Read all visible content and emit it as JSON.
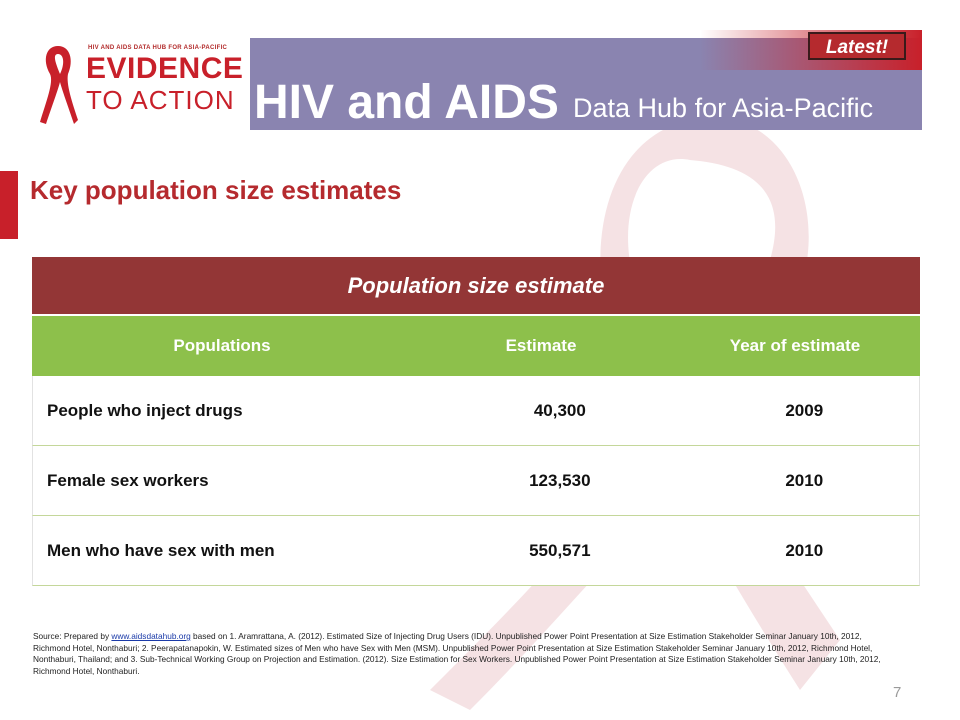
{
  "header": {
    "logo_small": "HIV AND AIDS DATA HUB FOR ASIA-PACIFIC",
    "logo_line1": "EVIDENCE",
    "logo_line2": "TO ACTION",
    "title": "HIV and AIDS",
    "subtitle": "Data Hub for Asia-Pacific",
    "badge": "Latest!"
  },
  "page_title": "Key population size estimates",
  "table": {
    "caption": "Population size estimate",
    "columns": [
      "Populations",
      "Estimate",
      "Year of estimate"
    ],
    "rows": [
      {
        "population": "People who inject drugs",
        "estimate": "40,300",
        "year": "2009"
      },
      {
        "population": "Female sex workers",
        "estimate": "123,530",
        "year": "2010"
      },
      {
        "population": "Men who have sex with men",
        "estimate": "550,571",
        "year": "2010"
      }
    ]
  },
  "source": {
    "prefix": "Source: Prepared by ",
    "link": "www.aidsdatahub.org",
    "text": " based on 1. Aramrattana, A. (2012). Estimated Size of Injecting Drug Users (IDU). Unpublished Power Point Presentation at Size Estimation Stakeholder Seminar January 10th, 2012, Richmond Hotel, Nonthaburi; 2. Peerapatanapokin, W. Estimated sizes of Men who have Sex with Men (MSM). Unpublished Power Point Presentation at Size Estimation Stakeholder Seminar January 10th, 2012, Richmond Hotel, Nonthaburi, Thailand; and 3. Sub-Technical Working Group on Projection and Estimation. (2012). Size Estimation for Sex Workers. Unpublished Power Point Presentation at Size Estimation Stakeholder Seminar January 10th, 2012, Richmond Hotel, Nonthaburi."
  },
  "page_number": "7",
  "colors": {
    "brand_red": "#c8202a",
    "banner_purple": "#8a84b0",
    "table_header": "#933636",
    "column_header": "#8dc04b"
  }
}
